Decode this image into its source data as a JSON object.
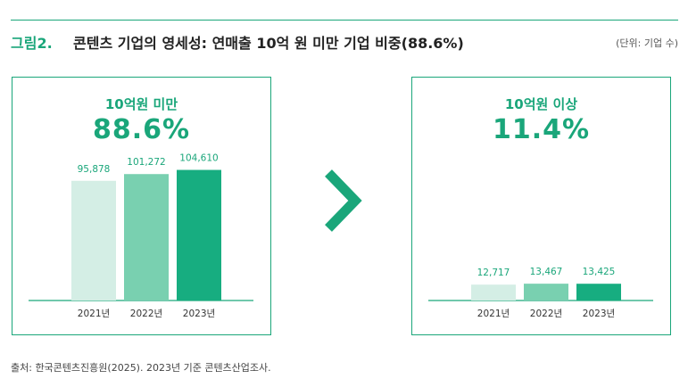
{
  "header": {
    "figure_label": "그림2.",
    "title": "콘텐츠 기업의 영세성: 연매출 10억 원 미만 기업 비중(88.6%)",
    "unit": "(단위: 기업 수)"
  },
  "panels": [
    {
      "label": "10억원 미만",
      "percent": "88.6%"
    },
    {
      "label": "10억원 이상",
      "percent": "11.4%"
    }
  ],
  "chart_data": [
    {
      "type": "bar",
      "title": "10억원 미만 88.6%",
      "categories": [
        "2021년",
        "2022년",
        "2023년"
      ],
      "values": [
        95878,
        101272,
        104610
      ],
      "value_labels": [
        "95,878",
        "101,272",
        "104,610"
      ],
      "colors": [
        "#d4eee5",
        "#79d0b0",
        "#17ad80"
      ],
      "ylim": [
        0,
        140000
      ],
      "xlabel": "",
      "ylabel": ""
    },
    {
      "type": "bar",
      "title": "10억원 이상 11.4%",
      "categories": [
        "2021년",
        "2022년",
        "2023년"
      ],
      "values": [
        12717,
        13467,
        13425
      ],
      "value_labels": [
        "12,717",
        "13,467",
        "13,425"
      ],
      "colors": [
        "#d4eee5",
        "#79d0b0",
        "#17ad80"
      ],
      "ylim": [
        0,
        140000
      ],
      "xlabel": "",
      "ylabel": ""
    }
  ],
  "arrow_icon": "chevron-right-icon",
  "accent_color": "#1aa67a",
  "source": "출처: 한국콘텐츠진흥원(2025). 2023년 기준 콘텐츠산업조사."
}
